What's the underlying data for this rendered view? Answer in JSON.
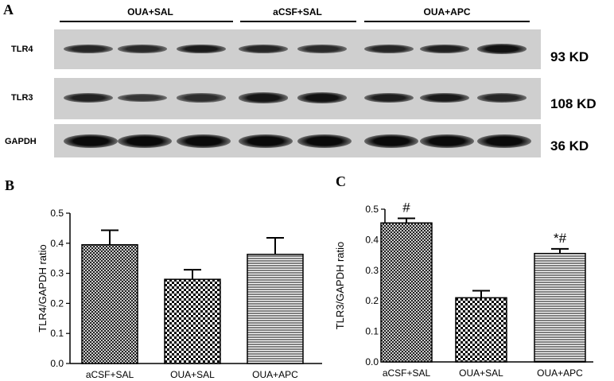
{
  "figure": {
    "panel_a_letter": "A",
    "panel_b_letter": "B",
    "panel_c_letter": "C"
  },
  "blot": {
    "groups": [
      "OUA+SAL",
      "aCSF+SAL",
      "OUA+APC"
    ],
    "rows": [
      {
        "protein": "TLR4",
        "size": "93 KD",
        "band_intensity": [
          0.65,
          0.6,
          0.8,
          0.65,
          0.6,
          0.65,
          0.72,
          0.9
        ]
      },
      {
        "protein": "TLR3",
        "size": "108 KD",
        "band_intensity": [
          0.7,
          0.45,
          0.55,
          0.85,
          0.9,
          0.75,
          0.8,
          0.65
        ]
      },
      {
        "protein": "GAPDH",
        "size": "36 KD",
        "band_intensity": [
          1,
          1,
          1,
          1,
          1,
          1,
          1,
          1
        ]
      }
    ]
  },
  "chart_data": [
    {
      "type": "bar",
      "panel": "B",
      "categories": [
        "aCSF+SAL",
        "OUA+SAL",
        "OUA+APC"
      ],
      "values": [
        0.395,
        0.28,
        0.363
      ],
      "errors": [
        0.048,
        0.032,
        0.055
      ],
      "patterns": [
        "crosshatch",
        "checker",
        "horizontal-lines"
      ],
      "annotations": [
        "",
        "",
        ""
      ],
      "ylabel": "TLR4/GAPDH ratio",
      "ylim": [
        0,
        0.5
      ],
      "yticks": [
        "0.0",
        "0.1",
        "0.2",
        "0.3",
        "0.4",
        "0.5"
      ]
    },
    {
      "type": "bar",
      "panel": "C",
      "categories": [
        "aCSF+SAL",
        "OUA+SAL",
        "OUA+APC"
      ],
      "values": [
        0.455,
        0.21,
        0.355
      ],
      "errors": [
        0.015,
        0.023,
        0.015
      ],
      "patterns": [
        "crosshatch",
        "checker",
        "horizontal-lines"
      ],
      "annotations": [
        "#",
        "",
        "*#"
      ],
      "ylabel": "TLR3/GAPDH ratio",
      "ylim": [
        0,
        0.5
      ],
      "yticks": [
        "0.0",
        "0.1",
        "0.2",
        "0.3",
        "0.4",
        "0.5"
      ]
    }
  ]
}
